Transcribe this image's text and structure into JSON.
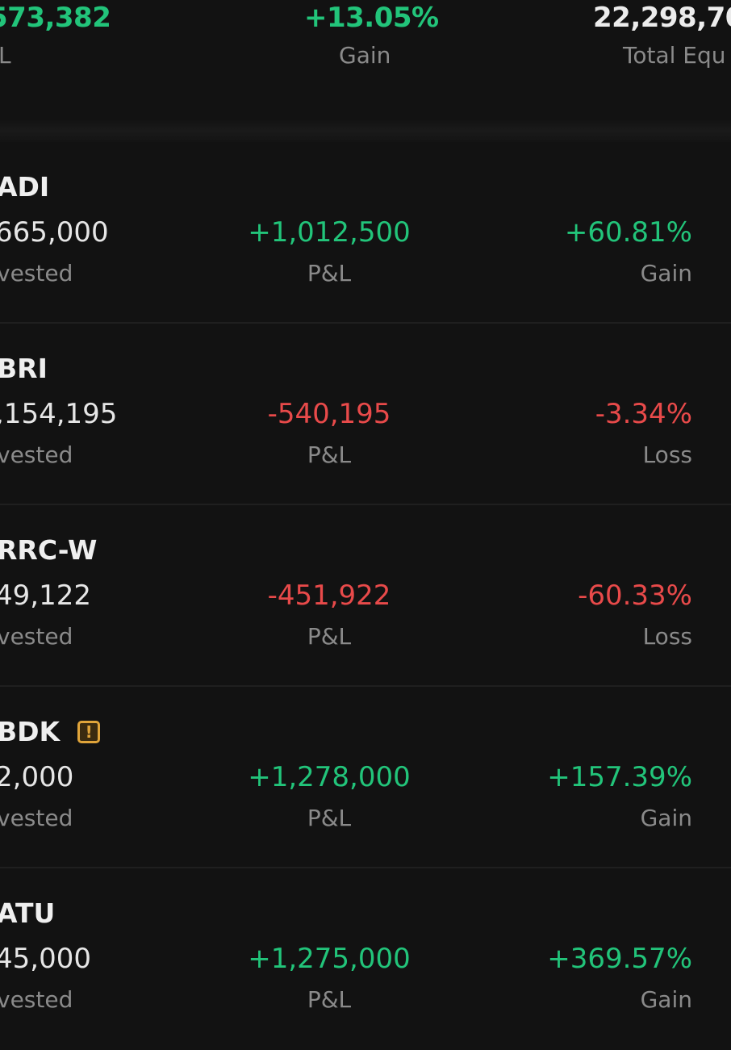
{
  "summary": {
    "pnl_value": "573,382",
    "pnl_label": "L",
    "gain_value": "+13.05%",
    "gain_label": "Gain",
    "equity_value": "22,298,70",
    "equity_label": "Total Equ"
  },
  "colors": {
    "positive": "#22c47a",
    "negative": "#e84a4a",
    "warning": "#e0a43a",
    "background": "#121212"
  },
  "holdings": [
    {
      "ticker": "ADI",
      "invested": "665,000",
      "invested_label": "vested",
      "pnl": "+1,012,500",
      "pnl_label": "P&L",
      "pct": "+60.81%",
      "pct_label": "Gain",
      "direction": "pos",
      "warning": false
    },
    {
      "ticker": "BRI",
      "invested": ",154,195",
      "invested_label": "vested",
      "pnl": "-540,195",
      "pnl_label": "P&L",
      "pct": "-3.34%",
      "pct_label": "Loss",
      "direction": "neg",
      "warning": false
    },
    {
      "ticker": "RRC-W",
      "invested": "49,122",
      "invested_label": "vested",
      "pnl": "-451,922",
      "pnl_label": "P&L",
      "pct": "-60.33%",
      "pct_label": "Loss",
      "direction": "neg",
      "warning": false
    },
    {
      "ticker": "BDK",
      "invested": "2,000",
      "invested_label": "vested",
      "pnl": "+1,278,000",
      "pnl_label": "P&L",
      "pct": "+157.39%",
      "pct_label": "Gain",
      "direction": "pos",
      "warning": true,
      "warning_glyph": "!"
    },
    {
      "ticker": "ATU",
      "invested": "45,000",
      "invested_label": "vested",
      "pnl": "+1,275,000",
      "pnl_label": "P&L",
      "pct": "+369.57%",
      "pct_label": "Gain",
      "direction": "pos",
      "warning": false
    }
  ]
}
